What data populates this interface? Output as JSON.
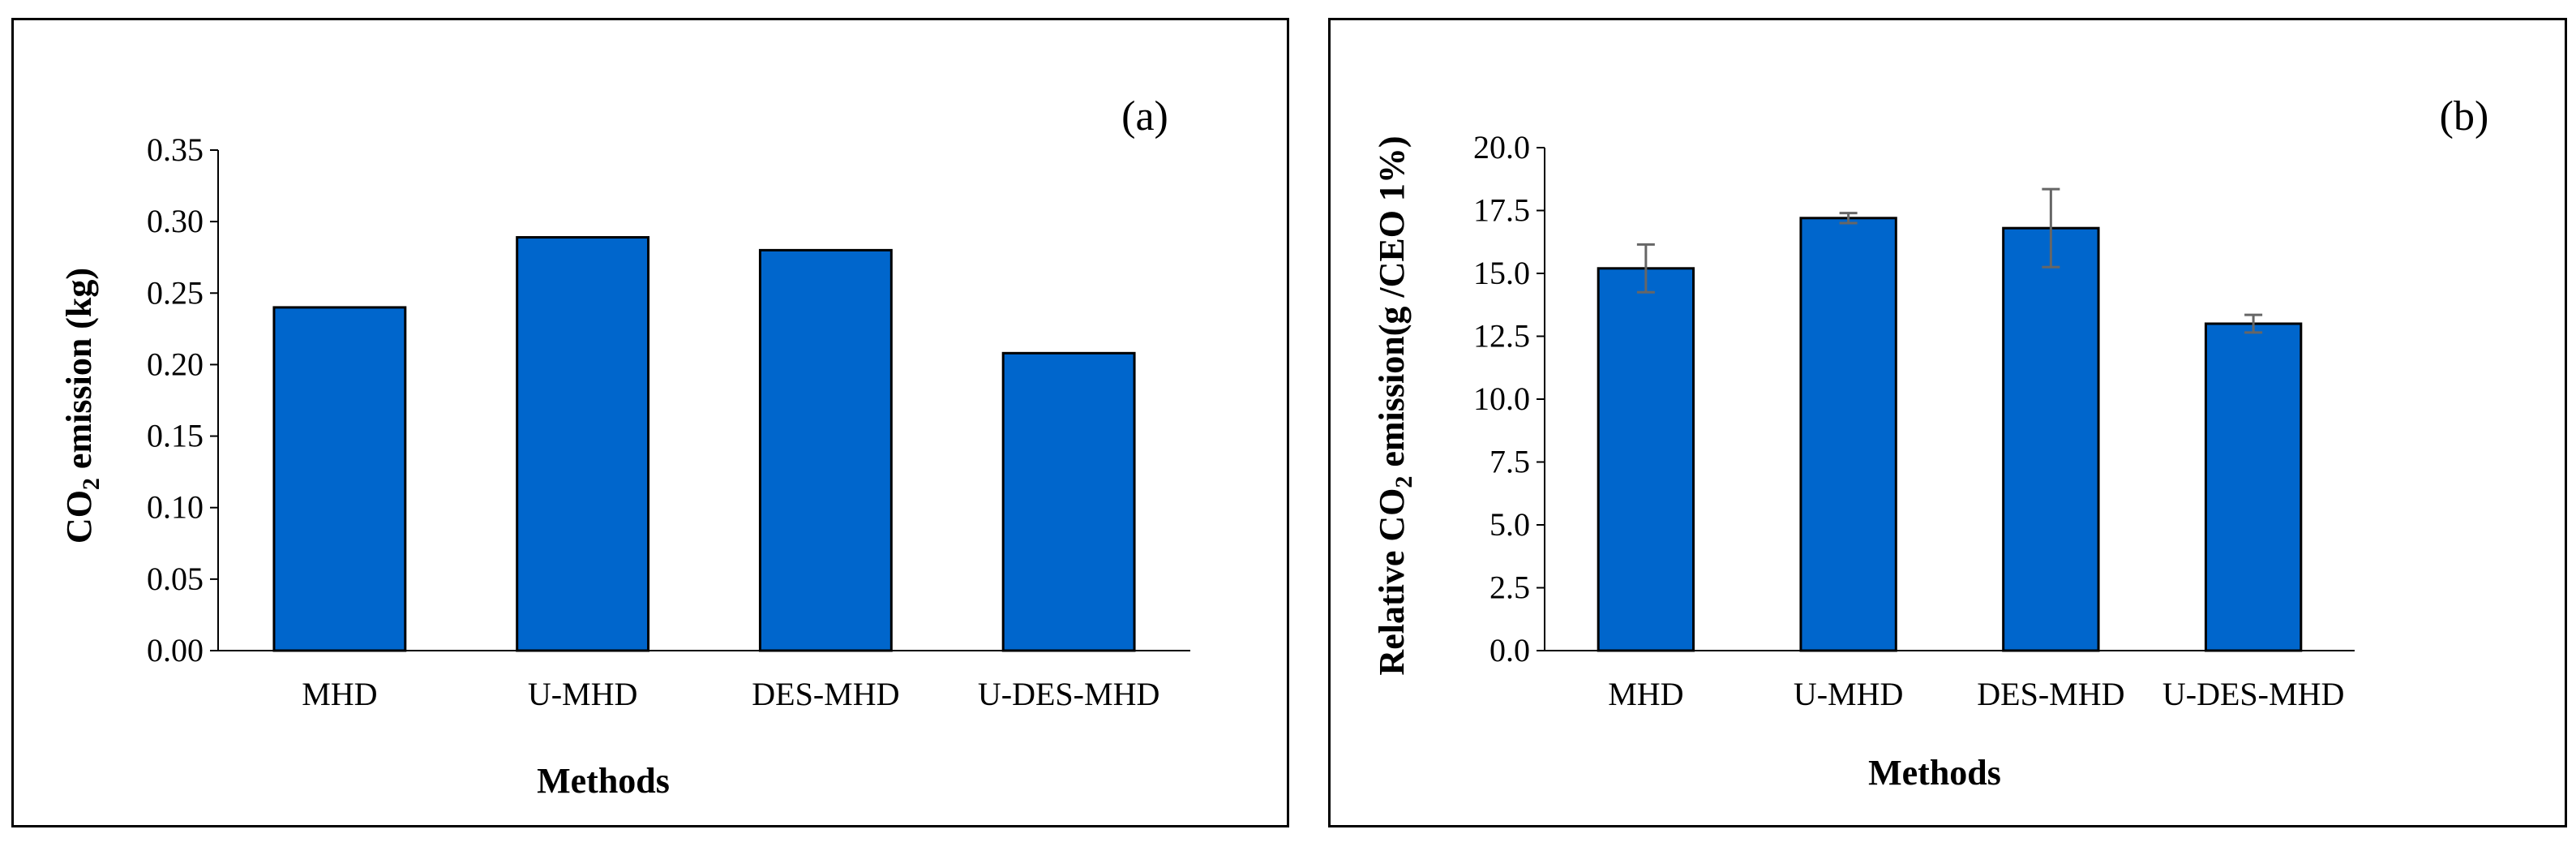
{
  "colors": {
    "bar_fill": "#0066CC",
    "bar_stroke": "#000000",
    "error_bar": "#666666",
    "axis": "#000000"
  },
  "chart_data": [
    {
      "type": "bar",
      "panel_label": "(a)",
      "categories": [
        "MHD",
        "U-MHD",
        "DES-MHD",
        "U-DES-MHD"
      ],
      "values": [
        0.24,
        0.289,
        0.28,
        0.208
      ],
      "xlabel": "Methods",
      "ylabel_prefix": "CO",
      "ylabel_sub": "2",
      "ylabel_suffix": " emission (kg)",
      "ylim": [
        0,
        0.35
      ],
      "yticks": [
        "0.00",
        "0.05",
        "0.10",
        "0.15",
        "0.20",
        "0.25",
        "0.30",
        "0.35"
      ],
      "grid": false
    },
    {
      "type": "bar",
      "panel_label": "(b)",
      "categories": [
        "MHD",
        "U-MHD",
        "DES-MHD",
        "U-DES-MHD"
      ],
      "values": [
        15.2,
        17.2,
        16.8,
        13.0
      ],
      "errors": [
        0.95,
        0.2,
        1.55,
        0.35
      ],
      "xlabel": "Methods",
      "ylabel_prefix": "Relative CO",
      "ylabel_sub": "2",
      "ylabel_suffix": " emission(g /CEO 1%)",
      "ylim": [
        0,
        20
      ],
      "yticks": [
        "0.0",
        "2.5",
        "5.0",
        "7.5",
        "10.0",
        "12.5",
        "15.0",
        "17.5",
        "20.0"
      ],
      "grid": false
    }
  ]
}
